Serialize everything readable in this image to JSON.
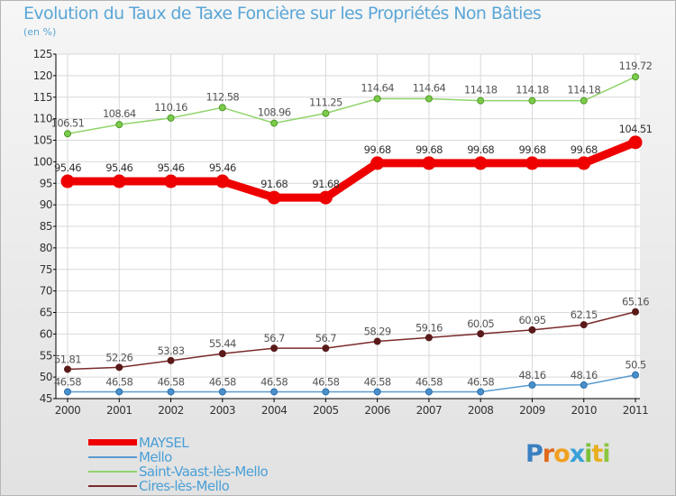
{
  "header": {
    "title": "Evolution du Taux de Taxe Foncière sur les Propriétés Non Bâties",
    "subtitle": "(en %)"
  },
  "logo": {
    "letters": [
      "P",
      "r",
      "o",
      "x",
      "i",
      "t",
      "i"
    ],
    "text": "Proxiti"
  },
  "chart_data": {
    "type": "line",
    "title": "Evolution du Taux de Taxe Foncière sur les Propriétés Non Bâties",
    "ylabel": "(en %)",
    "xlabel": "",
    "x": [
      "2000",
      "2001",
      "2002",
      "2003",
      "2004",
      "2005",
      "2006",
      "2007",
      "2008",
      "2009",
      "2010",
      "2011"
    ],
    "ylim": [
      45,
      125
    ],
    "yticks": [
      45,
      50,
      55,
      60,
      65,
      70,
      75,
      80,
      85,
      90,
      95,
      100,
      105,
      110,
      115,
      120,
      125
    ],
    "grid": true,
    "legend_position": "bottom-left",
    "series": [
      {
        "name": "MAYSEL",
        "color": "#ee0000",
        "values": [
          95.46,
          95.46,
          95.46,
          95.46,
          91.68,
          91.68,
          99.68,
          99.68,
          99.68,
          99.68,
          99.68,
          104.51
        ],
        "labels": [
          "95.46",
          "95.46",
          "95.46",
          "95.46",
          "91.68",
          "91.68",
          "99.68",
          "99.68",
          "99.68",
          "99.68",
          "99.68",
          "104.51"
        ]
      },
      {
        "name": "Mello",
        "color": "#5b9bd0",
        "values": [
          46.58,
          46.58,
          46.58,
          46.58,
          46.58,
          46.58,
          46.58,
          46.58,
          46.58,
          48.16,
          48.16,
          50.5
        ],
        "labels": [
          "46.58",
          "46.58",
          "46.58",
          "46.58",
          "46.58",
          "46.58",
          "46.58",
          "46.58",
          "46.58",
          "48.16",
          "48.16",
          "50.5"
        ]
      },
      {
        "name": "Saint-Vaast-lès-Mello",
        "color": "#8fd46a",
        "values": [
          106.51,
          108.64,
          110.16,
          112.58,
          108.96,
          111.25,
          114.64,
          114.64,
          114.18,
          114.18,
          114.18,
          119.72
        ],
        "labels": [
          "106.51",
          "108.64",
          "110.16",
          "112.58",
          "108.96",
          "111.25",
          "114.64",
          "114.64",
          "114.18",
          "114.18",
          "114.18",
          "119.72"
        ]
      },
      {
        "name": "Cires-lès-Mello",
        "color": "#7a2a2a",
        "values": [
          51.81,
          52.26,
          53.83,
          55.44,
          56.7,
          56.7,
          58.29,
          59.16,
          60.05,
          60.95,
          62.15,
          65.16
        ],
        "labels": [
          "51.81",
          "52.26",
          "53.83",
          "55.44",
          "56.7",
          "56.7",
          "58.29",
          "59.16",
          "60.05",
          "60.95",
          "62.15",
          "65.16"
        ]
      }
    ]
  }
}
